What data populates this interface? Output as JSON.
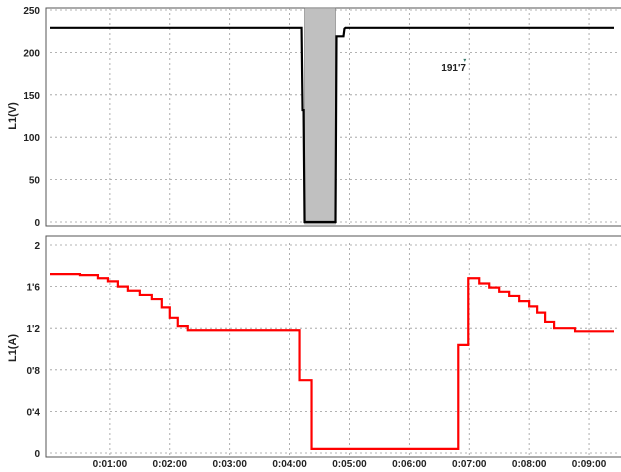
{
  "chart_data": [
    {
      "type": "line",
      "title": "",
      "ylabel": "L1(V)",
      "xlim": [
        0,
        565
      ],
      "ylim": [
        0,
        250
      ],
      "yticks": [
        0,
        50,
        100,
        150,
        200,
        250
      ],
      "yticklabels": [
        "0",
        "50",
        "100",
        "150",
        "200",
        "250"
      ],
      "highlight_region": {
        "x": [
          255,
          286
        ],
        "color": "#c0c0c0"
      },
      "annotation": {
        "text": "191'7",
        "x": 392,
        "y": 183,
        "marker_color": "#3a7a6a"
      },
      "series": [
        {
          "color": "#000000",
          "points": [
            [
              0,
              229
            ],
            [
              252,
              229
            ],
            [
              253,
              132
            ],
            [
              254,
              132
            ],
            [
              255,
              0
            ],
            [
              286,
              0
            ],
            [
              287,
              219
            ],
            [
              294,
              219
            ],
            [
              295,
              228
            ],
            [
              296,
              229
            ],
            [
              565,
              229
            ]
          ]
        }
      ]
    },
    {
      "type": "line",
      "title": "",
      "ylabel": "L1(A)",
      "xlabel": "",
      "xlim": [
        0,
        565
      ],
      "ylim": [
        0,
        2
      ],
      "yticks": [
        0,
        0.4,
        0.8,
        1.2,
        1.6,
        2
      ],
      "yticklabels": [
        "0",
        "0'4",
        "0'8",
        "1'2",
        "1'6",
        "2"
      ],
      "xticks": [
        60,
        120,
        180,
        240,
        300,
        360,
        420,
        480,
        540
      ],
      "xticklabels": [
        "0:01:00",
        "0:02:00",
        "0:03:00",
        "0:04:00",
        "0:05:00",
        "0:06:00",
        "0:07:00",
        "0:08:00",
        "0:09:00"
      ],
      "series": [
        {
          "color": "#ff0000",
          "points": [
            [
              0,
              1.72
            ],
            [
              30,
              1.72
            ],
            [
              30,
              1.71
            ],
            [
              48,
              1.71
            ],
            [
              48,
              1.68
            ],
            [
              58,
              1.68
            ],
            [
              58,
              1.65
            ],
            [
              68,
              1.65
            ],
            [
              68,
              1.6
            ],
            [
              78,
              1.6
            ],
            [
              78,
              1.56
            ],
            [
              90,
              1.56
            ],
            [
              90,
              1.52
            ],
            [
              102,
              1.52
            ],
            [
              102,
              1.48
            ],
            [
              112,
              1.48
            ],
            [
              112,
              1.4
            ],
            [
              120,
              1.4
            ],
            [
              120,
              1.3
            ],
            [
              128,
              1.3
            ],
            [
              128,
              1.22
            ],
            [
              138,
              1.22
            ],
            [
              138,
              1.18
            ],
            [
              250,
              1.18
            ],
            [
              250,
              0.7
            ],
            [
              262,
              0.7
            ],
            [
              262,
              0.04
            ],
            [
              409,
              0.04
            ],
            [
              409,
              1.04
            ],
            [
              419,
              1.04
            ],
            [
              419,
              1.68
            ],
            [
              430,
              1.68
            ],
            [
              430,
              1.63
            ],
            [
              440,
              1.63
            ],
            [
              440,
              1.59
            ],
            [
              450,
              1.59
            ],
            [
              450,
              1.55
            ],
            [
              460,
              1.55
            ],
            [
              460,
              1.51
            ],
            [
              470,
              1.51
            ],
            [
              470,
              1.46
            ],
            [
              480,
              1.46
            ],
            [
              480,
              1.41
            ],
            [
              488,
              1.41
            ],
            [
              488,
              1.35
            ],
            [
              496,
              1.35
            ],
            [
              496,
              1.26
            ],
            [
              505,
              1.26
            ],
            [
              505,
              1.2
            ],
            [
              526,
              1.2
            ],
            [
              526,
              1.17
            ],
            [
              565,
              1.17
            ]
          ]
        }
      ]
    }
  ]
}
